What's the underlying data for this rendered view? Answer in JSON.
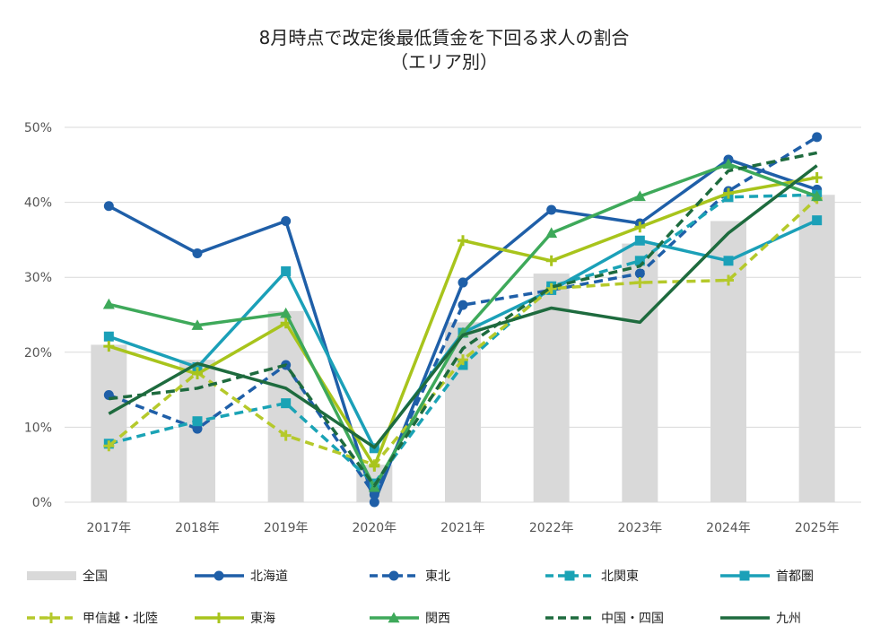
{
  "chart_data": {
    "type": "line",
    "title": "8月時点で改定後最低賃金を下回る求人の割合",
    "subtitle": "（エリア別）",
    "categories": [
      "2017年",
      "2018年",
      "2019年",
      "2020年",
      "2021年",
      "2022年",
      "2023年",
      "2024年",
      "2025年"
    ],
    "y_ticks": [
      "0%",
      "10%",
      "20%",
      "30%",
      "40%",
      "50%"
    ],
    "ylim": [
      0,
      50
    ],
    "grid": "horizontal",
    "legend_placement": "bottom",
    "bar_series": {
      "name": "全国",
      "values": [
        21.0,
        19.0,
        25.5,
        5.0,
        24.0,
        30.5,
        34.5,
        37.5,
        41.0
      ],
      "color": "#d9d9d9"
    },
    "series": [
      {
        "name": "北海道",
        "values": [
          39.5,
          33.2,
          37.5,
          0.0,
          29.3,
          39.0,
          37.2,
          45.7,
          41.7
        ],
        "color": "#1f5fa8",
        "dash": "solid",
        "marker": "circle"
      },
      {
        "name": "東北",
        "values": [
          14.3,
          9.8,
          18.3,
          1.0,
          26.3,
          28.3,
          30.5,
          41.5,
          48.7
        ],
        "color": "#1f5fa8",
        "dash": "dashed",
        "marker": "circle"
      },
      {
        "name": "北関東",
        "values": [
          7.8,
          10.8,
          13.2,
          2.5,
          18.3,
          28.8,
          32.2,
          40.7,
          41.0
        ],
        "color": "#1aa3b5",
        "dash": "dashed",
        "marker": "square"
      },
      {
        "name": "首都圏",
        "values": [
          22.1,
          18.0,
          30.8,
          7.2,
          22.6,
          28.3,
          34.9,
          32.2,
          37.6
        ],
        "color": "#1ba0b8",
        "dash": "solid",
        "marker": "square"
      },
      {
        "name": "甲信越・北陸",
        "values": [
          7.5,
          17.3,
          8.9,
          5.0,
          19.0,
          28.5,
          29.3,
          29.6,
          40.5
        ],
        "color": "#b5c92b",
        "dash": "dashed",
        "marker": "plus"
      },
      {
        "name": "東海",
        "values": [
          20.8,
          17.1,
          23.9,
          4.8,
          34.9,
          32.2,
          36.7,
          41.2,
          43.3
        ],
        "color": "#a8c41c",
        "dash": "solid",
        "marker": "plus"
      },
      {
        "name": "関西",
        "values": [
          26.4,
          23.6,
          25.2,
          2.0,
          22.6,
          35.9,
          40.8,
          45.1,
          40.8
        ],
        "color": "#3ea95a",
        "dash": "solid",
        "marker": "triangle"
      },
      {
        "name": "中国・四国",
        "values": [
          13.8,
          15.2,
          18.3,
          2.2,
          20.5,
          28.7,
          31.5,
          44.2,
          46.6
        ],
        "color": "#1e6b3e",
        "dash": "dashed",
        "marker": "none"
      },
      {
        "name": "九州",
        "values": [
          11.8,
          18.5,
          15.2,
          7.3,
          22.3,
          25.9,
          24.0,
          35.9,
          44.9
        ],
        "color": "#1e6b3e",
        "dash": "solid",
        "marker": "none"
      }
    ]
  }
}
